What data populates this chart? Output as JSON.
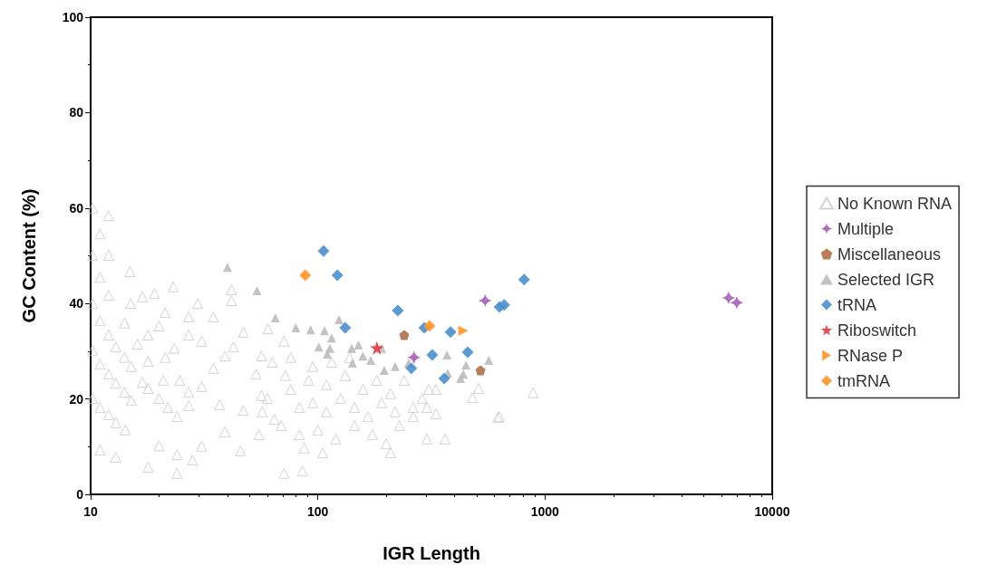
{
  "chart_data": {
    "type": "scatter",
    "xlabel": "IGR Length",
    "ylabel": "GC Content (%)",
    "log": "x",
    "xlim": [
      10,
      10000
    ],
    "xticks": [
      10,
      100,
      1000,
      10000
    ],
    "ylim": [
      0,
      100
    ],
    "yticks": [
      0,
      20,
      40,
      60,
      80,
      100
    ],
    "grid": false,
    "legend": "right",
    "series": [
      {
        "name": "No Known RNA",
        "color": "#c8c8c8",
        "marker": "triangle-open",
        "x": [
          10.2,
          12,
          11,
          10.2,
          12,
          14.9,
          11,
          12,
          10.2,
          15,
          16.9,
          19.1,
          23.1,
          11,
          14.1,
          12,
          12.9,
          14.1,
          15.1,
          10.2,
          11,
          12,
          12.9,
          14.1,
          15.1,
          10.2,
          11,
          12,
          12.9,
          14.2,
          11,
          12.9,
          17.9,
          24,
          28.1,
          20,
          16.9,
          17.9,
          20,
          21.9,
          24,
          27,
          21.3,
          17.9,
          16.1,
          17.9,
          20,
          21.3,
          27,
          29.6,
          34.7,
          41.7,
          41.7,
          27,
          30.8,
          23.3,
          20.9,
          24.7,
          27,
          30.8,
          34.7,
          39.1,
          42.5,
          37,
          39.1,
          30.8,
          24,
          45.7,
          71,
          85.5,
          47,
          60.3,
          71,
          56.5,
          53.5,
          56.5,
          47,
          55,
          64.3,
          83,
          95,
          109,
          126,
          145,
          166,
          191,
          219,
          76,
          91,
          109,
          132,
          158,
          182,
          209,
          240,
          69,
          83,
          100,
          120,
          145,
          174,
          200,
          229,
          263,
          288,
          302,
          331,
          63,
          76,
          95,
          115,
          138,
          60,
          57,
          72,
          87,
          105,
          209,
          302,
          630,
          887,
          479,
          510,
          363,
          308,
          331,
          263,
          619
        ],
        "values": [
          60,
          58.4,
          54.6,
          50.1,
          50.1,
          46.7,
          45.5,
          41.7,
          40,
          40,
          41.4,
          42.1,
          43.5,
          36.4,
          35.9,
          33.4,
          30.9,
          28.7,
          26.8,
          30.2,
          27.3,
          25.2,
          23.3,
          21.4,
          19.7,
          20.1,
          18.2,
          16.7,
          15,
          13.5,
          9.3,
          7.8,
          5.7,
          4.4,
          7.2,
          10.2,
          23.5,
          22.2,
          20.1,
          18.2,
          16.3,
          18.6,
          28.7,
          27.9,
          31.5,
          33.4,
          35.3,
          38.1,
          37.2,
          40,
          37.2,
          42.9,
          40.6,
          33.4,
          32.1,
          30.6,
          23.9,
          23.9,
          21.4,
          22.6,
          26.4,
          29,
          30.9,
          18.8,
          13.1,
          10.1,
          8.3,
          9.1,
          4.4,
          4.9,
          34,
          34.7,
          32.1,
          29,
          25.2,
          20.7,
          17.6,
          12.5,
          15.7,
          18.2,
          19.2,
          17.3,
          20.1,
          18.2,
          16.3,
          19.2,
          17.3,
          22,
          23.9,
          23,
          24.9,
          22,
          23.9,
          21.1,
          23.9,
          14.4,
          12.5,
          13.5,
          11.6,
          14.4,
          12.5,
          10.6,
          14.4,
          16.3,
          20.1,
          18.2,
          22,
          27.7,
          28.7,
          26.8,
          27.7,
          28.7,
          20.1,
          17.3,
          24.9,
          9.7,
          8.7,
          8.7,
          11.6,
          16.3,
          21.3,
          20.3,
          22.2,
          11.6,
          22,
          16.9,
          18.2,
          16.1
        ]
      },
      {
        "name": "Multiple",
        "color": "#a75fb5",
        "marker": "cross",
        "x": [
          545,
          265,
          6427,
          6982
        ],
        "values": [
          40.6,
          28.7,
          41.2,
          40.2
        ]
      },
      {
        "name": "Miscellaneous",
        "color": "#b0714a",
        "x": [
          240,
          520
        ],
        "values": [
          33.4,
          26
        ]
      },
      {
        "name": "Selected IGR",
        "color": "#bdbdbd",
        "marker": "triangle",
        "x": [
          40,
          54,
          65,
          80,
          93,
          101,
          107,
          124,
          115,
          113,
          110,
          141,
          151,
          158,
          142,
          171,
          191,
          196,
          219,
          251,
          370,
          449,
          565,
          437,
          425,
          373
        ],
        "values": [
          47.6,
          42.7,
          37,
          34.9,
          34.5,
          30.9,
          34.3,
          36.6,
          32.8,
          30.6,
          29.4,
          30.6,
          31.3,
          29,
          27.5,
          28.1,
          30.6,
          26,
          26.8,
          27.5,
          29.2,
          27.1,
          28.1,
          25.2,
          24.3,
          25.4
        ]
      },
      {
        "name": "tRNA",
        "color": "#4a8fcc",
        "marker": "diamond",
        "x": [
          106,
          122,
          132,
          225,
          294,
          319,
          258,
          384,
          360,
          457,
          631,
          661,
          809
        ],
        "values": [
          51,
          45.9,
          34.9,
          38.5,
          34.9,
          29.2,
          26.4,
          34,
          24.3,
          29.8,
          39.3,
          39.7,
          45
        ]
      },
      {
        "name": "Riboswitch",
        "color": "#e03a3c",
        "marker": "star",
        "x": [
          182
        ],
        "values": [
          30.7
        ]
      },
      {
        "name": "RNase P",
        "color": "#ff9626",
        "marker": "triangle-right",
        "x": [
          437
        ],
        "values": [
          34.3
        ]
      },
      {
        "name": "tmRNA",
        "color": "#ff9626",
        "marker": "diamond",
        "x": [
          88,
          310
        ],
        "values": [
          45.9,
          35.3
        ]
      }
    ]
  }
}
